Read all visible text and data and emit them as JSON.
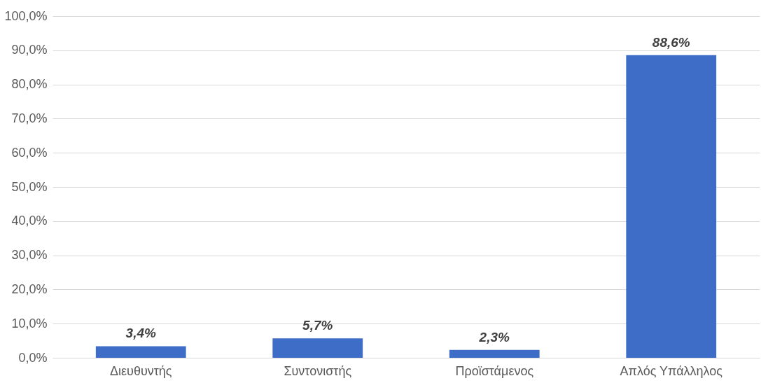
{
  "chart_data": {
    "type": "bar",
    "categories": [
      "Διευθυντής",
      "Συντονιστής",
      "Προϊστάμενος",
      "Απλός Υπάλληλος"
    ],
    "values": [
      3.4,
      5.7,
      2.3,
      88.6
    ],
    "value_labels": [
      "3,4%",
      "5,7%",
      "2,3%",
      "88,6%"
    ],
    "color": "#3d6dc6",
    "ylim": [
      0,
      100
    ],
    "yticks": [
      {
        "value": 0,
        "label": "0,0%"
      },
      {
        "value": 10,
        "label": "10,0%"
      },
      {
        "value": 20,
        "label": "20,0%"
      },
      {
        "value": 30,
        "label": "30,0%"
      },
      {
        "value": 40,
        "label": "40,0%"
      },
      {
        "value": 50,
        "label": "50,0%"
      },
      {
        "value": 60,
        "label": "60,0%"
      },
      {
        "value": 70,
        "label": "70,0%"
      },
      {
        "value": 80,
        "label": "80,0%"
      },
      {
        "value": 90,
        "label": "90,0%"
      },
      {
        "value": 100,
        "label": "100,0%"
      }
    ],
    "grid": "y"
  }
}
